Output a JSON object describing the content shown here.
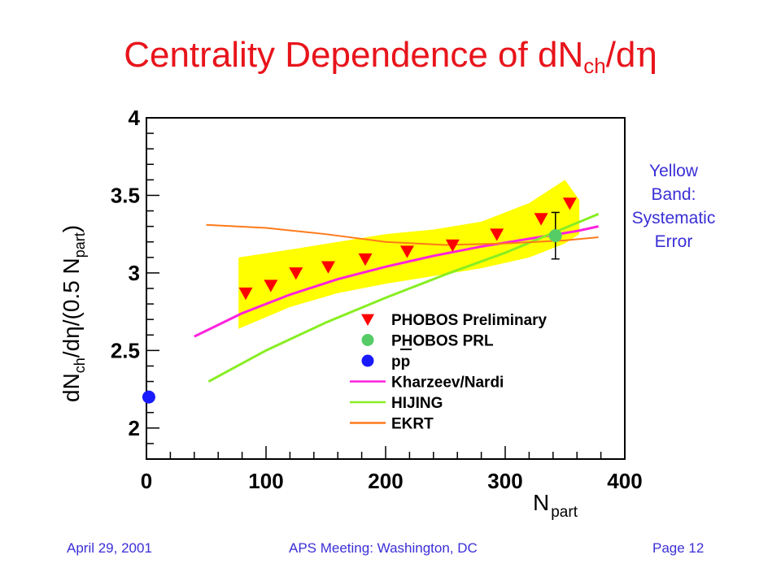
{
  "slide": {
    "title_main": "Centrality Dependence of dN",
    "title_sub": "ch",
    "title_end": "/d",
    "title_greek": "η",
    "note_lines": [
      "Yellow",
      "Band:",
      "Systematic",
      "Error"
    ],
    "footer_left": "April 29, 2001",
    "footer_center": "APS Meeting: Washington, DC",
    "footer_right": "Page 12"
  },
  "colors": {
    "title": "#e8141b",
    "note": "#3a2fd6",
    "band": "#ffff00",
    "prelim": "#ff0000",
    "prl": "#55cc66",
    "pp": "#1a1aff",
    "kharzeev": "#ff22dd",
    "hijing": "#88ee22",
    "ekrt": "#ff7a1a"
  },
  "chart_data": {
    "type": "scatter",
    "xlabel": "N",
    "xlabel_sub": "part",
    "ylabel_parts": [
      "dN",
      "ch",
      "/d",
      "η",
      "/(0.5 N",
      "part",
      ")"
    ],
    "xlim": [
      0,
      400
    ],
    "ylim": [
      1.8,
      4.0
    ],
    "x_ticks": [
      "0",
      "100",
      "200",
      "300",
      "400"
    ],
    "y_ticks": [
      "2",
      "2.5",
      "3",
      "3.5",
      "4"
    ],
    "series": [
      {
        "name": "PHOBOS Preliminary",
        "marker": "triangle-down",
        "x": [
          83,
          104,
          125,
          152,
          183,
          218,
          256,
          293,
          330,
          354
        ],
        "y": [
          2.87,
          2.92,
          3.0,
          3.04,
          3.09,
          3.14,
          3.18,
          3.25,
          3.35,
          3.45
        ]
      },
      {
        "name": "PHOBOS PRL",
        "marker": "circle",
        "x": [
          342
        ],
        "y": [
          3.24
        ],
        "yerr": [
          0.15
        ]
      },
      {
        "name": "pp",
        "marker": "circle",
        "x": [
          2
        ],
        "y": [
          2.2
        ]
      },
      {
        "name": "Kharzeev/Nardi",
        "marker": "line",
        "x": [
          40,
          80,
          120,
          160,
          200,
          240,
          280,
          320,
          360,
          378
        ],
        "y": [
          2.59,
          2.74,
          2.86,
          2.96,
          3.04,
          3.11,
          3.17,
          3.22,
          3.27,
          3.3
        ]
      },
      {
        "name": "HIJING",
        "marker": "line",
        "x": [
          52,
          100,
          150,
          200,
          250,
          300,
          350,
          378
        ],
        "y": [
          2.3,
          2.5,
          2.68,
          2.84,
          2.99,
          3.13,
          3.29,
          3.38
        ]
      },
      {
        "name": "EKRT",
        "marker": "line",
        "x": [
          50,
          100,
          150,
          200,
          250,
          300,
          350,
          378
        ],
        "y": [
          3.31,
          3.29,
          3.25,
          3.2,
          3.18,
          3.19,
          3.21,
          3.23
        ]
      }
    ],
    "band": {
      "x": [
        77,
        120,
        160,
        200,
        240,
        280,
        320,
        350,
        362
      ],
      "upper": [
        3.1,
        3.15,
        3.2,
        3.25,
        3.28,
        3.33,
        3.45,
        3.6,
        3.47
      ],
      "lower": [
        2.64,
        2.78,
        2.87,
        2.93,
        2.98,
        3.03,
        3.1,
        3.19,
        3.25
      ]
    },
    "legend_position": "lower-right"
  }
}
